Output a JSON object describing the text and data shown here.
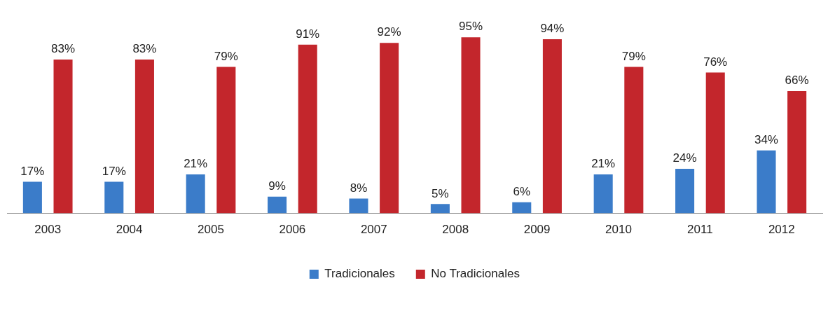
{
  "chart_data": {
    "type": "bar",
    "categories": [
      "2003",
      "2004",
      "2005",
      "2006",
      "2007",
      "2008",
      "2009",
      "2010",
      "2011",
      "2012"
    ],
    "series": [
      {
        "name": "Tradicionales",
        "color": "#3b7cc9",
        "values": [
          17,
          17,
          21,
          9,
          8,
          5,
          6,
          21,
          24,
          34
        ],
        "value_labels": [
          "17%",
          "17%",
          "21%",
          "9%",
          "8%",
          "5%",
          "6%",
          "21%",
          "24%",
          "34%"
        ]
      },
      {
        "name": "No Tradicionales",
        "color": "#c3262c",
        "values": [
          83,
          83,
          79,
          91,
          92,
          95,
          94,
          79,
          76,
          66
        ],
        "value_labels": [
          "83%",
          "83%",
          "79%",
          "91%",
          "92%",
          "95%",
          "94%",
          "79%",
          "76%",
          "66%"
        ]
      }
    ],
    "legend": "bottom",
    "grid": false,
    "tick_labels": "x"
  }
}
